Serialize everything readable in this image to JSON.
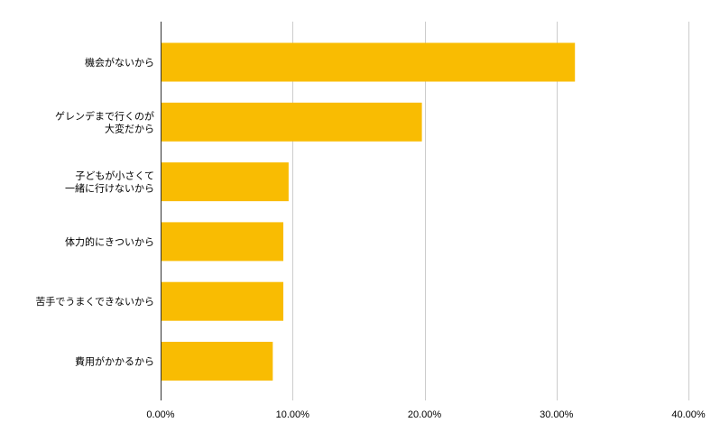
{
  "chart_data": {
    "type": "bar",
    "orientation": "horizontal",
    "categories": [
      [
        "機会がないから"
      ],
      [
        "ゲレンデまで行くのが",
        "大変だから"
      ],
      [
        "子どもが小さくて",
        "一緒に行けないから"
      ],
      [
        "体力的にきついから"
      ],
      [
        "苦手でうまくできないから"
      ],
      [
        "費用がかかるから"
      ]
    ],
    "values": [
      31.4,
      19.8,
      9.7,
      9.3,
      9.3,
      8.5
    ],
    "unit": "%",
    "xlim": [
      0,
      40
    ],
    "x_ticks": [
      "0.00%",
      "10.00%",
      "20.00%",
      "30.00%",
      "40.00%"
    ],
    "title": "",
    "xlabel": "",
    "ylabel": "",
    "grid": "vertical",
    "legend": "none",
    "bar_color": "#f9bc02",
    "grid_color": "#cccccc",
    "axis_color": "#333333"
  }
}
